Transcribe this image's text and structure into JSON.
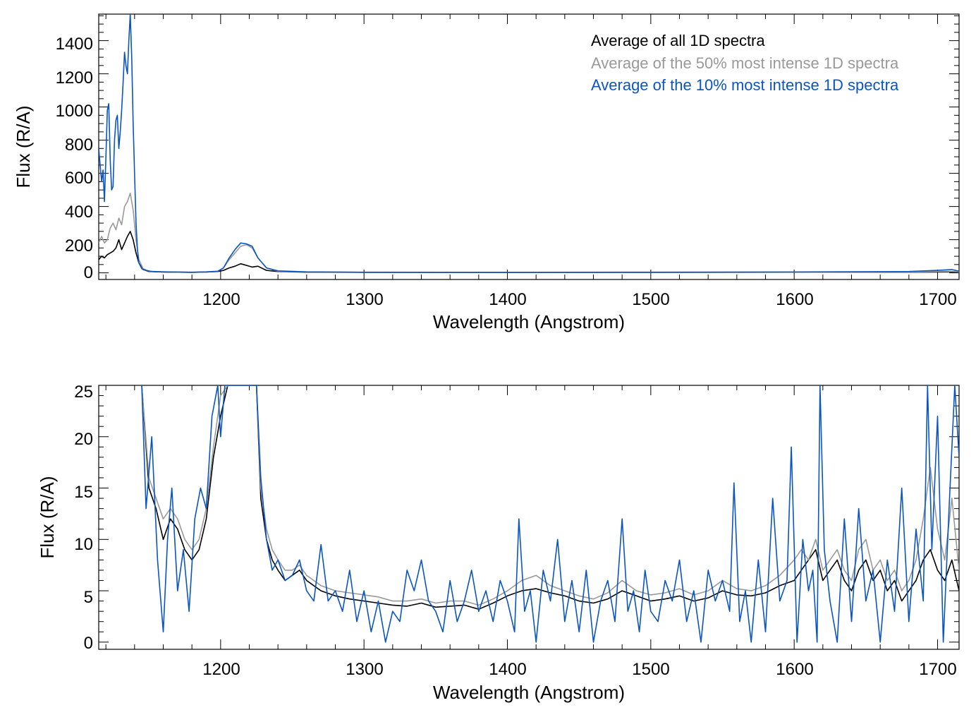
{
  "chart_data": [
    {
      "type": "line",
      "xlabel": "Wavelength (Angstrom)",
      "ylabel": "Flux (R/A)",
      "xlim": [
        1115,
        1715
      ],
      "ylim": [
        -40,
        1560
      ],
      "xticks": [
        1200,
        1300,
        1400,
        1500,
        1600,
        1700
      ],
      "yticks": [
        0,
        200,
        400,
        600,
        800,
        1000,
        1200,
        1400
      ],
      "legend_position": "top-right",
      "series": [
        {
          "name": "Average of all 1D spectra",
          "color": "#000000",
          "x": [
            1115,
            1117,
            1119,
            1121,
            1123,
            1125,
            1127,
            1129,
            1131,
            1133,
            1135,
            1137,
            1139,
            1141,
            1143,
            1146,
            1150,
            1160,
            1170,
            1180,
            1190,
            1198,
            1202,
            1206,
            1210,
            1214,
            1218,
            1222,
            1226,
            1232,
            1240,
            1260,
            1300,
            1400,
            1500,
            1600,
            1680,
            1700,
            1710,
            1715
          ],
          "y": [
            80,
            100,
            90,
            110,
            120,
            130,
            150,
            200,
            140,
            180,
            220,
            250,
            200,
            120,
            60,
            20,
            8,
            5,
            4,
            3,
            5,
            8,
            15,
            30,
            40,
            55,
            45,
            35,
            40,
            15,
            8,
            4,
            3,
            3,
            3,
            4,
            4,
            5,
            6,
            5
          ]
        },
        {
          "name": "Average of the 50% most intense 1D spectra",
          "color": "#999999",
          "x": [
            1115,
            1117,
            1119,
            1121,
            1123,
            1125,
            1127,
            1129,
            1131,
            1133,
            1135,
            1137,
            1139,
            1141,
            1143,
            1146,
            1150,
            1160,
            1170,
            1180,
            1190,
            1198,
            1202,
            1206,
            1210,
            1214,
            1218,
            1222,
            1226,
            1232,
            1240,
            1260,
            1300,
            1400,
            1500,
            1600,
            1680,
            1700,
            1710,
            1715
          ],
          "y": [
            180,
            220,
            180,
            200,
            270,
            300,
            260,
            330,
            290,
            400,
            430,
            480,
            380,
            200,
            80,
            25,
            10,
            6,
            4,
            3,
            5,
            9,
            30,
            80,
            120,
            160,
            170,
            150,
            90,
            30,
            10,
            5,
            3,
            3,
            3,
            4,
            5,
            8,
            9,
            6
          ]
        },
        {
          "name": "Average of the 10% most intense 1D spectra",
          "color": "#0a55c0",
          "x": [
            1115,
            1116,
            1117,
            1118,
            1119,
            1120,
            1121,
            1122,
            1123,
            1124,
            1125,
            1126,
            1127,
            1128,
            1129,
            1130,
            1131,
            1132,
            1133,
            1134,
            1135,
            1136,
            1137,
            1138,
            1139,
            1140,
            1141,
            1142,
            1143,
            1145,
            1148,
            1152,
            1160,
            1170,
            1180,
            1190,
            1198,
            1202,
            1206,
            1210,
            1214,
            1218,
            1222,
            1226,
            1232,
            1240,
            1260,
            1300,
            1400,
            1500,
            1600,
            1680,
            1700,
            1710,
            1715
          ],
          "y": [
            750,
            650,
            550,
            620,
            430,
            700,
            980,
            1020,
            680,
            500,
            520,
            800,
            920,
            950,
            750,
            850,
            980,
            1150,
            1330,
            1250,
            1200,
            1400,
            1560,
            1300,
            900,
            600,
            300,
            140,
            60,
            25,
            15,
            8,
            6,
            5,
            4,
            6,
            10,
            30,
            90,
            140,
            180,
            175,
            160,
            90,
            30,
            12,
            6,
            4,
            3,
            4,
            5,
            8,
            15,
            20,
            10
          ]
        }
      ]
    },
    {
      "type": "line",
      "xlabel": "Wavelength (Angstrom)",
      "ylabel": "Flux (R/A)",
      "xlim": [
        1115,
        1715
      ],
      "ylim": [
        -0.7,
        25
      ],
      "xticks": [
        1200,
        1300,
        1400,
        1500,
        1600,
        1700
      ],
      "yticks": [
        0,
        5,
        10,
        15,
        20,
        25
      ],
      "series": [
        {
          "name": "Average of all 1D spectra",
          "color": "#000000",
          "x": [
            1145,
            1150,
            1155,
            1160,
            1165,
            1170,
            1175,
            1180,
            1185,
            1190,
            1195,
            1200,
            1205,
            1225,
            1228,
            1232,
            1236,
            1240,
            1245,
            1250,
            1255,
            1260,
            1265,
            1270,
            1280,
            1290,
            1300,
            1310,
            1320,
            1330,
            1340,
            1350,
            1360,
            1370,
            1380,
            1390,
            1400,
            1410,
            1420,
            1430,
            1440,
            1450,
            1460,
            1470,
            1480,
            1490,
            1500,
            1510,
            1520,
            1530,
            1540,
            1550,
            1560,
            1570,
            1580,
            1590,
            1600,
            1605,
            1610,
            1615,
            1620,
            1625,
            1630,
            1635,
            1640,
            1645,
            1650,
            1655,
            1660,
            1665,
            1670,
            1675,
            1680,
            1685,
            1690,
            1695,
            1700,
            1705,
            1710,
            1715
          ],
          "y": [
            25,
            15,
            13,
            10,
            12,
            11,
            9,
            8,
            9,
            12,
            18,
            22,
            25,
            25,
            14,
            10,
            8,
            7,
            6,
            6.5,
            7,
            6,
            5.5,
            5,
            4.5,
            4.2,
            4,
            3.8,
            3.6,
            3.5,
            3.8,
            3.4,
            3.5,
            3.6,
            3.2,
            3.8,
            4.5,
            5,
            5.2,
            4.8,
            4.5,
            4,
            3.8,
            4.2,
            5,
            4.5,
            4,
            4.2,
            4.5,
            4,
            4.3,
            5,
            4.6,
            4.5,
            4.8,
            5.5,
            6,
            7,
            8,
            9,
            6,
            7,
            8,
            6,
            5,
            7,
            8,
            6,
            7,
            5,
            6,
            4,
            5,
            6,
            8,
            9,
            7,
            6,
            8,
            5
          ]
        },
        {
          "name": "Average of the 50% most intense 1D spectra",
          "color": "#999999",
          "x": [
            1145,
            1150,
            1155,
            1160,
            1165,
            1170,
            1175,
            1180,
            1185,
            1190,
            1195,
            1200,
            1205,
            1225,
            1228,
            1232,
            1236,
            1240,
            1245,
            1250,
            1255,
            1260,
            1265,
            1270,
            1280,
            1290,
            1300,
            1310,
            1320,
            1330,
            1340,
            1350,
            1360,
            1370,
            1380,
            1390,
            1400,
            1410,
            1420,
            1430,
            1440,
            1450,
            1460,
            1470,
            1480,
            1490,
            1500,
            1510,
            1520,
            1530,
            1540,
            1550,
            1560,
            1570,
            1580,
            1590,
            1600,
            1605,
            1610,
            1615,
            1620,
            1625,
            1630,
            1635,
            1640,
            1645,
            1650,
            1655,
            1660,
            1665,
            1670,
            1675,
            1680,
            1685,
            1690,
            1695,
            1700,
            1705,
            1710,
            1715
          ],
          "y": [
            25,
            16,
            14,
            12,
            13,
            12,
            10,
            9,
            10,
            13,
            19,
            24,
            25,
            25,
            15,
            11,
            9,
            8,
            7,
            7,
            7.5,
            6.5,
            6,
            5.5,
            5,
            4.8,
            4.6,
            4.4,
            4,
            4,
            4.2,
            3.8,
            4,
            4,
            3.6,
            4.2,
            5,
            6,
            6.5,
            5.5,
            5,
            4.5,
            4.2,
            4.8,
            6,
            5,
            4.6,
            4.8,
            5.2,
            4.6,
            5,
            6,
            5.2,
            5,
            5.5,
            6.5,
            8,
            9,
            8,
            10,
            7,
            8,
            9,
            7,
            6,
            9,
            10,
            7,
            8,
            6,
            7,
            5,
            6,
            8,
            12,
            17,
            11,
            8,
            14,
            7
          ]
        },
        {
          "name": "Average of the 10% most intense 1D spectra",
          "color": "#0a55c0",
          "x": [
            1145,
            1148,
            1152,
            1156,
            1160,
            1163,
            1166,
            1170,
            1174,
            1178,
            1182,
            1186,
            1190,
            1194,
            1198,
            1200,
            1203,
            1225,
            1228,
            1232,
            1236,
            1240,
            1245,
            1250,
            1255,
            1260,
            1265,
            1270,
            1275,
            1280,
            1285,
            1290,
            1295,
            1300,
            1305,
            1310,
            1315,
            1320,
            1325,
            1330,
            1335,
            1340,
            1345,
            1350,
            1355,
            1360,
            1365,
            1370,
            1375,
            1380,
            1385,
            1390,
            1395,
            1400,
            1405,
            1408,
            1412,
            1416,
            1420,
            1425,
            1430,
            1435,
            1440,
            1445,
            1450,
            1455,
            1460,
            1465,
            1470,
            1475,
            1480,
            1484,
            1488,
            1492,
            1496,
            1500,
            1505,
            1510,
            1515,
            1520,
            1525,
            1530,
            1535,
            1540,
            1545,
            1550,
            1555,
            1558,
            1562,
            1566,
            1570,
            1575,
            1580,
            1585,
            1590,
            1595,
            1598,
            1602,
            1606,
            1610,
            1613,
            1616,
            1618,
            1621,
            1625,
            1630,
            1635,
            1640,
            1645,
            1650,
            1655,
            1660,
            1665,
            1670,
            1675,
            1680,
            1685,
            1690,
            1693,
            1696,
            1700,
            1704,
            1708,
            1712,
            1715
          ],
          "y": [
            25,
            13,
            20,
            8,
            1,
            10,
            15,
            5,
            9,
            3,
            12,
            15,
            13,
            22,
            25,
            20,
            25,
            25,
            16,
            10,
            7,
            8,
            6,
            6.5,
            8,
            5,
            4,
            9.5,
            4,
            5,
            3,
            7,
            2,
            5,
            1,
            4,
            0,
            3,
            2,
            7,
            5,
            8,
            4,
            3,
            1,
            6,
            2,
            4,
            7,
            3,
            5,
            2,
            6,
            4,
            1,
            12,
            3,
            5,
            0,
            7,
            4,
            10,
            2,
            6,
            1,
            7,
            0,
            4,
            6,
            2,
            12,
            3,
            5,
            1,
            7,
            3,
            2,
            6,
            4,
            8,
            2,
            5,
            0,
            7,
            4,
            6,
            3,
            15.5,
            2,
            5,
            0,
            8,
            1,
            14,
            4,
            6,
            19,
            0,
            10,
            5,
            7,
            0,
            25,
            9,
            4,
            0,
            12,
            2,
            13,
            4,
            7,
            0,
            8,
            3,
            15,
            2,
            11,
            4,
            25,
            9,
            22,
            0,
            13,
            25,
            18
          ]
        }
      ]
    }
  ],
  "panels": [
    {
      "xlabel": "Wavelength (Angstrom)",
      "ylabel": "Flux (R/A)",
      "xtick_labels": [
        "1200",
        "1300",
        "1400",
        "1500",
        "1600",
        "1700"
      ],
      "ytick_labels": [
        "0",
        "200",
        "400",
        "600",
        "800",
        "1000",
        "1200",
        "1400"
      ]
    },
    {
      "xlabel": "Wavelength (Angstrom)",
      "ylabel": "Flux (R/A)",
      "xtick_labels": [
        "1200",
        "1300",
        "1400",
        "1500",
        "1600",
        "1700"
      ],
      "ytick_labels": [
        "0",
        "5",
        "10",
        "15",
        "20",
        "25"
      ]
    }
  ],
  "legend": [
    {
      "label": "Average of all 1D spectra",
      "color": "#000000"
    },
    {
      "label": "Average of the 50% most intense 1D spectra",
      "color": "#999999"
    },
    {
      "label": "Average of the 10% most intense 1D spectra",
      "color": "#0a55c0"
    }
  ]
}
